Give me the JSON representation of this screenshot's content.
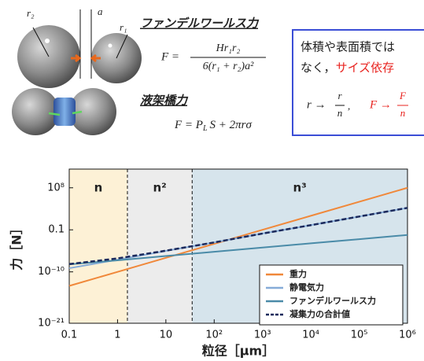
{
  "diagram": {
    "vdw_title": "ファンデルワールス力",
    "r2": "r₂",
    "gap": "a",
    "r1": "r₁",
    "vdw_formula": {
      "lhs": "F =",
      "numerator": "Hr₁r₂",
      "denominator": "6(r₁ + r₂)a²"
    },
    "liquid_title": "液架橋力",
    "liquid_formula": {
      "lhs": "F = P",
      "sub": "L",
      "rest": "S + 2πrσ"
    },
    "box_lines": [
      "体積や表面積では",
      "なく，",
      "サイズ依存"
    ],
    "box_formula": {
      "r_arrow": "r →",
      "r_num": "r",
      "r_den": "n",
      "sep": ",",
      "f_arrow": "F →",
      "f_num": "F",
      "f_den": "n"
    }
  },
  "chart_data": {
    "type": "line",
    "log_x": true,
    "log_y": true,
    "xlabel": "粒径［μm］",
    "ylabel": "力［N］",
    "x": [
      0.1,
      1,
      10,
      100,
      1000,
      10000,
      100000,
      1000000
    ],
    "series": [
      {
        "name": "重力",
        "color": "#f0883a",
        "dash": false,
        "values": [
          1e-13,
          1e-10,
          1e-07,
          0.0001,
          0.1,
          100,
          100000,
          100000000
        ]
      },
      {
        "name": "静電気力",
        "color": "#86acd8",
        "dash": false,
        "values": [
          6e-10,
          4e-08,
          3e-06,
          0.0002,
          0.016,
          1,
          70,
          5000
        ]
      },
      {
        "name": "ファンデルワールス力",
        "color": "#4a8ba8",
        "dash": false,
        "values": [
          4e-09,
          3e-08,
          2.5e-07,
          2e-06,
          1.6e-05,
          0.00013,
          0.001,
          0.008
        ]
      },
      {
        "name": "凝集力の合計値",
        "color": "#1c2a5c",
        "dash": true,
        "values": [
          4.6e-09,
          7.6e-08,
          3.4e-06,
          0.0002,
          0.016,
          1,
          70,
          5000
        ]
      }
    ],
    "regions": [
      {
        "label": "n",
        "from": 0.1,
        "to": 1.6,
        "color": "#fdf1d6"
      },
      {
        "label": "n²",
        "from": 1.6,
        "to": 35,
        "color": "#ececec"
      },
      {
        "label": "n³",
        "from": 35,
        "to": 1000000,
        "color": "#d6e4ec"
      }
    ],
    "xlim": [
      0.1,
      1000000
    ],
    "xticks": [
      0.1,
      1,
      10,
      {
        "value": 100,
        "label": "10²"
      },
      {
        "value": 1000,
        "label": "10³"
      },
      {
        "value": 10000,
        "label": "10⁴"
      },
      {
        "value": 100000,
        "label": "10⁵"
      },
      {
        "value": 1000000,
        "label": "10⁶"
      }
    ],
    "ylim": [
      1e-21,
      1000000000000.0
    ],
    "yticks": [
      {
        "value": 1e-21,
        "label": "10⁻²¹"
      },
      {
        "value": 1e-10,
        "label": "10⁻¹⁰"
      },
      0.1,
      {
        "value": 100000000,
        "label": "10⁸"
      }
    ],
    "legend": "lower right"
  }
}
